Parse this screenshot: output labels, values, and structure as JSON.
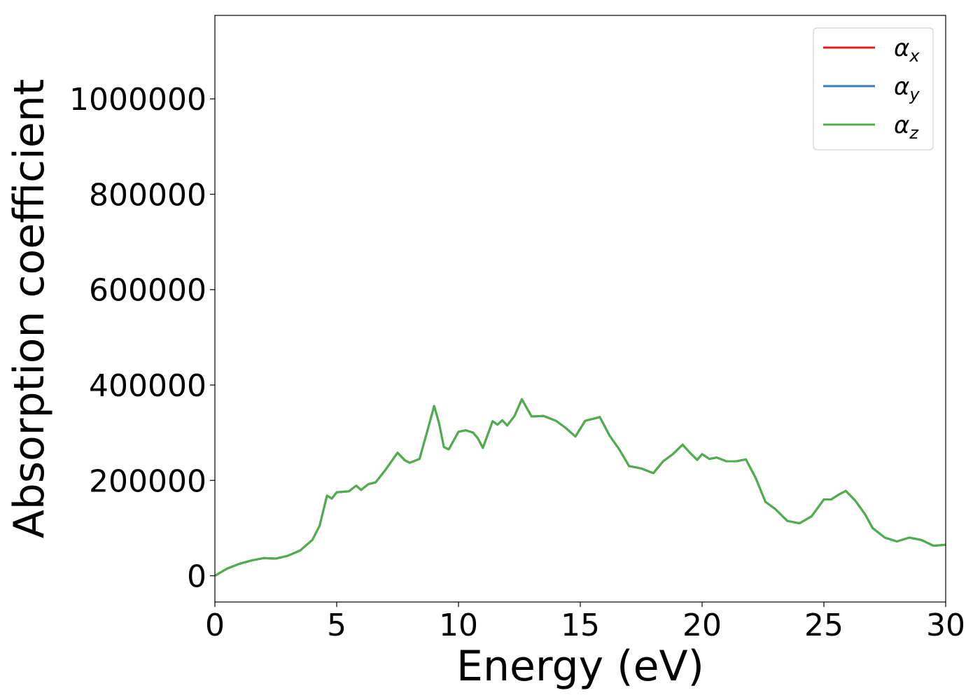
{
  "chart_data": {
    "type": "line",
    "title": "",
    "xlabel": "Energy (eV)",
    "ylabel": "Absorption coefficient",
    "xlim": [
      0,
      30
    ],
    "ylim": [
      -55000,
      1175000
    ],
    "xticks": [
      0,
      5,
      10,
      15,
      20,
      25,
      30
    ],
    "xtick_labels": [
      "0",
      "5",
      "10",
      "15",
      "20",
      "25",
      "30"
    ],
    "yticks": [
      0,
      200000,
      400000,
      600000,
      800000,
      1000000
    ],
    "ytick_labels": [
      "0",
      "200000",
      "400000",
      "600000",
      "800000",
      "1000000"
    ],
    "grid": false,
    "legend_position": "top-right",
    "x": [
      0,
      0.5,
      1,
      1.5,
      2,
      2.5,
      3,
      3.5,
      4,
      4.3,
      4.6,
      4.8,
      5,
      5.5,
      5.8,
      6,
      6.3,
      6.6,
      7,
      7.5,
      7.8,
      8,
      8.4,
      8.7,
      9,
      9.2,
      9.4,
      9.6,
      10,
      10.3,
      10.6,
      10.8,
      11,
      11.4,
      11.6,
      11.8,
      12,
      12.3,
      12.6,
      13,
      13.5,
      14,
      14.4,
      14.8,
      15.2,
      15.6,
      15.8,
      16.2,
      16.6,
      17,
      17.5,
      18,
      18.4,
      18.8,
      19.2,
      19.5,
      19.8,
      20,
      20.3,
      20.6,
      21,
      21.4,
      21.8,
      22.2,
      22.6,
      23,
      23.5,
      24,
      24.5,
      25,
      25.3,
      25.6,
      25.9,
      26.3,
      26.7,
      27,
      27.5,
      28,
      28.5,
      29,
      29.5,
      30
    ],
    "series": [
      {
        "name": "α_x",
        "color": "#e41a1c",
        "values": [
          0,
          15000,
          25000,
          32000,
          37000,
          36000,
          42000,
          53000,
          75000,
          105000,
          168000,
          162000,
          175000,
          177000,
          189000,
          180000,
          192000,
          196000,
          222000,
          258000,
          242000,
          237000,
          245000,
          300000,
          356000,
          320000,
          270000,
          265000,
          302000,
          305000,
          300000,
          288000,
          268000,
          324000,
          317000,
          326000,
          315000,
          335000,
          370000,
          334000,
          335000,
          325000,
          310000,
          292000,
          325000,
          330000,
          333000,
          294000,
          265000,
          230000,
          225000,
          215000,
          240000,
          255000,
          275000,
          258000,
          243000,
          255000,
          245000,
          248000,
          240000,
          240000,
          244000,
          205000,
          155000,
          140000,
          115000,
          110000,
          125000,
          160000,
          160000,
          170000,
          178000,
          157000,
          128000,
          100000,
          80000,
          72000,
          80000,
          75000,
          63000,
          65000
        ]
      },
      {
        "name": "α_y",
        "color": "#377eb8",
        "values": [
          0,
          15000,
          25000,
          32000,
          37000,
          36000,
          42000,
          53000,
          75000,
          105000,
          168000,
          162000,
          175000,
          177000,
          189000,
          180000,
          192000,
          196000,
          222000,
          258000,
          242000,
          237000,
          245000,
          300000,
          356000,
          320000,
          270000,
          265000,
          302000,
          305000,
          300000,
          288000,
          268000,
          324000,
          317000,
          326000,
          315000,
          335000,
          370000,
          334000,
          335000,
          325000,
          310000,
          292000,
          325000,
          330000,
          333000,
          294000,
          265000,
          230000,
          225000,
          215000,
          240000,
          255000,
          275000,
          258000,
          243000,
          255000,
          245000,
          248000,
          240000,
          240000,
          244000,
          205000,
          155000,
          140000,
          115000,
          110000,
          125000,
          160000,
          160000,
          170000,
          178000,
          157000,
          128000,
          100000,
          80000,
          72000,
          80000,
          75000,
          63000,
          65000
        ]
      },
      {
        "name": "α_z",
        "color": "#4daf4a",
        "values": [
          0,
          15000,
          25000,
          32000,
          37000,
          36000,
          42000,
          53000,
          75000,
          105000,
          168000,
          162000,
          175000,
          177000,
          189000,
          180000,
          192000,
          196000,
          222000,
          258000,
          242000,
          237000,
          245000,
          300000,
          356000,
          320000,
          270000,
          265000,
          302000,
          305000,
          300000,
          288000,
          268000,
          324000,
          317000,
          326000,
          315000,
          335000,
          370000,
          334000,
          335000,
          325000,
          310000,
          292000,
          325000,
          330000,
          333000,
          294000,
          265000,
          230000,
          225000,
          215000,
          240000,
          255000,
          275000,
          258000,
          243000,
          255000,
          245000,
          248000,
          240000,
          240000,
          244000,
          205000,
          155000,
          140000,
          115000,
          110000,
          125000,
          160000,
          160000,
          170000,
          178000,
          157000,
          128000,
          100000,
          80000,
          72000,
          80000,
          75000,
          63000,
          65000
        ]
      }
    ],
    "legend": [
      {
        "symbol": "α",
        "sub": "x"
      },
      {
        "symbol": "α",
        "sub": "y"
      },
      {
        "symbol": "α",
        "sub": "z"
      }
    ]
  }
}
